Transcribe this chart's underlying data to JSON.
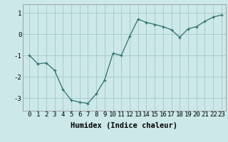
{
  "x": [
    0,
    1,
    2,
    3,
    4,
    5,
    6,
    7,
    8,
    9,
    10,
    11,
    12,
    13,
    14,
    15,
    16,
    17,
    18,
    19,
    20,
    21,
    22,
    23
  ],
  "y": [
    -1.0,
    -1.4,
    -1.35,
    -1.7,
    -2.6,
    -3.1,
    -3.2,
    -3.25,
    -2.8,
    -2.15,
    -0.9,
    -1.0,
    -0.1,
    0.7,
    0.55,
    0.45,
    0.35,
    0.2,
    -0.15,
    0.25,
    0.35,
    0.6,
    0.8,
    0.9
  ],
  "line_color": "#2d7070",
  "marker": "+",
  "bg_color": "#cce8e8",
  "grid_color": "#aacccc",
  "xlabel": "Humidex (Indice chaleur)",
  "xlabel_fontsize": 7.5,
  "tick_fontsize": 6.5,
  "ylim": [
    -3.6,
    1.4
  ],
  "yticks": [
    -3,
    -2,
    -1,
    0,
    1
  ],
  "xticks": [
    0,
    1,
    2,
    3,
    4,
    5,
    6,
    7,
    8,
    9,
    10,
    11,
    12,
    13,
    14,
    15,
    16,
    17,
    18,
    19,
    20,
    21,
    22,
    23
  ]
}
